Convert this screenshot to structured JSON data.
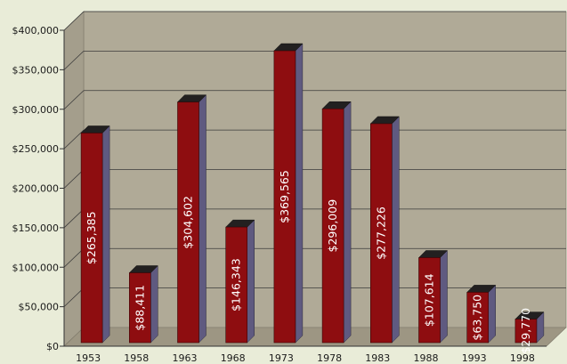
{
  "chart_data": {
    "type": "bar",
    "title": "",
    "xlabel": "",
    "ylabel": "",
    "categories": [
      "1953",
      "1958",
      "1963",
      "1968",
      "1973",
      "1978",
      "1983",
      "1988",
      "1993",
      "1998"
    ],
    "values": [
      265385,
      88411,
      304602,
      146343,
      369565,
      296009,
      277226,
      107614,
      63750,
      29770
    ],
    "data_labels": [
      "$265,385",
      "$88,411",
      "$304,602",
      "$146,343",
      "$369,565",
      "$296,009",
      "$277,226",
      "$107,614",
      "$63,750",
      "$29,770"
    ],
    "y_ticks": [
      0,
      50000,
      100000,
      150000,
      200000,
      250000,
      300000,
      350000,
      400000
    ],
    "y_tick_labels": [
      "$0",
      "$50,000",
      "$100,000",
      "$150,000",
      "$200,000",
      "$250,000",
      "$300,000",
      "$350,000",
      "$400,000"
    ],
    "ylim": [
      0,
      400000
    ],
    "grid": true,
    "legend": "none",
    "style": "3d-columns",
    "colors": {
      "bar_front": "#8e0d10",
      "bar_side": "#5f5a80",
      "bar_top": "#222020",
      "wall": "#b0aa97",
      "floor": "#9d9683",
      "gridline": "#3a3a3a",
      "page_background": "#e9ecd8"
    }
  }
}
